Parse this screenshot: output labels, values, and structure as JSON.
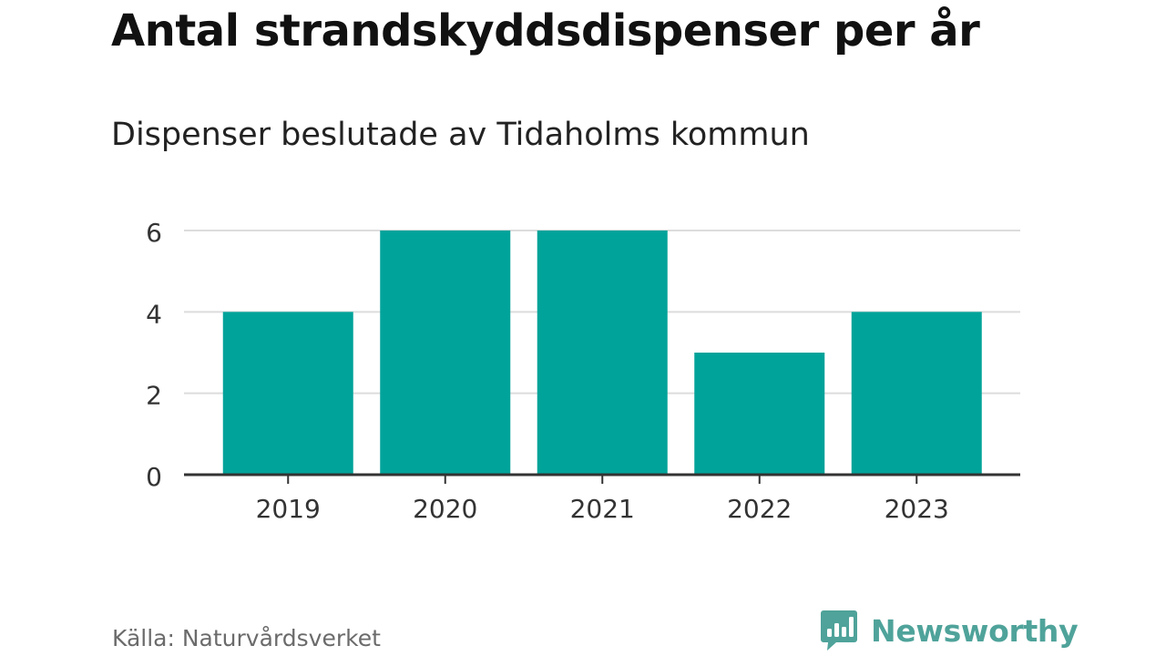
{
  "chart_data": {
    "type": "bar",
    "title": "Antal strandskyddsdispenser per år",
    "subtitle": "Dispenser beslutade av Tidaholms kommun",
    "categories": [
      "2019",
      "2020",
      "2021",
      "2022",
      "2023"
    ],
    "values": [
      4,
      6,
      6,
      3,
      4
    ],
    "xlabel": "",
    "ylabel": "",
    "ylim": [
      0,
      6
    ],
    "yticks": [
      "0",
      "2",
      "4",
      "6"
    ],
    "grid": true,
    "bar_color": "#00a39a",
    "gridline_color": "#dcdcdc",
    "axis_color": "#333333"
  },
  "footer": {
    "source": "Källa: Naturvårdsverket",
    "brand_name": "Newsworthy",
    "brand_color": "#4fa39a"
  }
}
